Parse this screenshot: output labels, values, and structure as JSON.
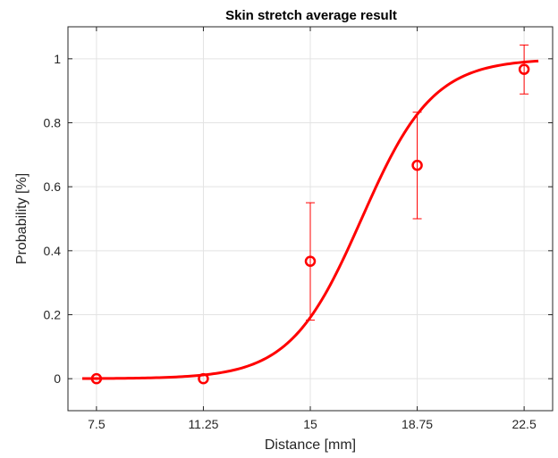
{
  "chart_data": {
    "type": "scatter",
    "title": "Skin stretch average result",
    "xlabel": "Distance [mm]",
    "ylabel": "Probability [%]",
    "xlim": [
      6.5,
      23.5
    ],
    "ylim": [
      -0.1,
      1.1
    ],
    "xticks": [
      7.5,
      11.25,
      15,
      18.75,
      22.5
    ],
    "xtick_labels": [
      "7.5",
      "11.25",
      "15",
      "18.75",
      "22.5"
    ],
    "yticks": [
      0,
      0.2,
      0.4,
      0.6,
      0.8,
      1
    ],
    "ytick_labels": [
      "0",
      "0.2",
      "0.4",
      "0.6",
      "0.8",
      "1"
    ],
    "grid": true,
    "color": "#ff0000",
    "points": [
      {
        "x": 7.5,
        "y": 0.0
      },
      {
        "x": 11.25,
        "y": 0.0
      },
      {
        "x": 15,
        "y": 0.367,
        "err_low": 0.183,
        "err_high": 0.55
      },
      {
        "x": 18.75,
        "y": 0.667,
        "err_low": 0.5,
        "err_high": 0.833
      },
      {
        "x": 22.5,
        "y": 0.967,
        "err_low": 0.89,
        "err_high": 1.043
      }
    ],
    "fit_curve": {
      "type": "logistic",
      "x_range": [
        7.0,
        23.0
      ],
      "midpoint": 16.8,
      "slope": 0.8
    }
  }
}
